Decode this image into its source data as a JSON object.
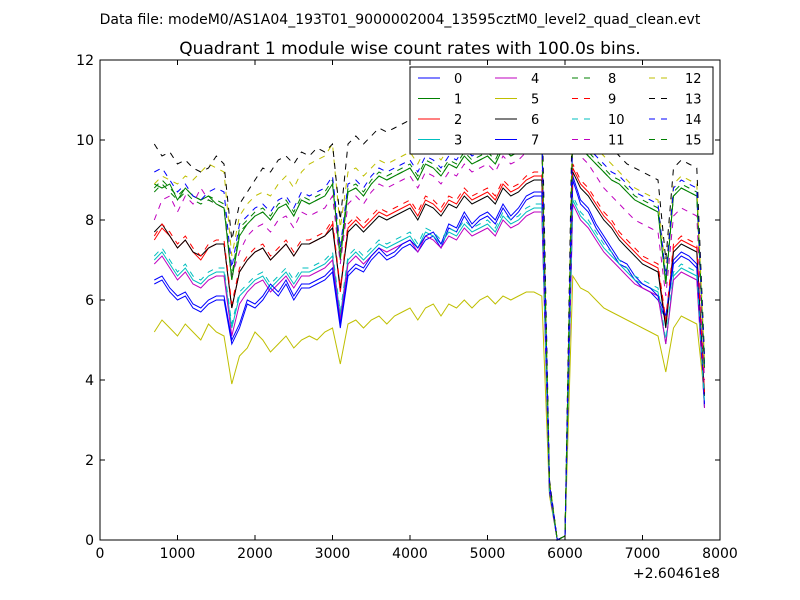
{
  "chart_data": {
    "type": "line",
    "suptitle": "Data file: modeM0/AS1A04_193T01_9000002004_13595cztM0_level2_quad_clean.evt",
    "title": "Quadrant 1 module wise count rates with 100.0s bins.",
    "xlabel": "",
    "ylabel": "",
    "x_offset_label": "+2.60461e8",
    "xlim": [
      0,
      8000
    ],
    "ylim": [
      0,
      12
    ],
    "xticks": [
      0,
      1000,
      2000,
      3000,
      4000,
      5000,
      6000,
      7000,
      8000
    ],
    "yticks": [
      0,
      2,
      4,
      6,
      8,
      10,
      12
    ],
    "grid": false,
    "legend_position": "top-right",
    "legend_columns": 4,
    "series": [
      {
        "name": "0",
        "color": "#0000ff",
        "dash": "solid",
        "values": [
          6.4,
          6.5,
          6.2,
          6.0,
          6.1,
          5.8,
          5.7,
          5.9,
          6.0,
          6.0,
          4.9,
          5.3,
          5.9,
          5.8,
          6.0,
          6.3,
          6.1,
          6.4,
          6.0,
          6.3,
          6.3,
          6.4,
          6.5,
          6.7,
          5.3,
          6.6,
          6.8,
          6.7,
          7.0,
          7.2,
          7.0,
          7.1,
          7.3,
          7.4,
          7.2,
          7.5,
          7.6,
          7.3,
          7.8,
          7.7,
          8.1,
          7.8,
          8.0,
          8.1,
          7.9,
          8.3,
          8.0,
          8.2,
          8.5,
          8.6,
          8.6,
          1.2,
          0.0,
          0.1,
          9.0,
          8.4,
          8.2,
          7.8,
          7.5,
          7.2,
          6.9,
          6.8,
          6.5,
          6.3,
          6.2,
          6.0,
          5.5,
          6.9,
          7.1,
          7.0,
          6.8,
          3.3
        ]
      },
      {
        "name": "1",
        "color": "#008000",
        "dash": "solid",
        "values": [
          8.9,
          8.8,
          8.9,
          8.5,
          8.8,
          8.6,
          8.5,
          8.6,
          8.4,
          8.3,
          6.5,
          7.6,
          7.9,
          8.1,
          8.2,
          8.0,
          8.3,
          8.4,
          8.1,
          8.5,
          8.4,
          8.5,
          8.6,
          8.9,
          7.0,
          8.7,
          8.8,
          8.6,
          8.9,
          9.1,
          9.0,
          9.1,
          9.2,
          9.3,
          9.0,
          9.4,
          9.3,
          9.1,
          9.4,
          9.3,
          9.6,
          9.4,
          9.5,
          9.6,
          9.4,
          9.8,
          9.6,
          9.7,
          9.9,
          10.0,
          10.0,
          1.4,
          0.0,
          0.1,
          10.3,
          9.8,
          9.6,
          9.4,
          9.2,
          9.0,
          8.9,
          8.7,
          8.5,
          8.4,
          8.3,
          8.2,
          6.4,
          8.6,
          8.8,
          8.7,
          8.6,
          4.3
        ]
      },
      {
        "name": "2",
        "color": "#ff0000",
        "dash": "solid",
        "values": [
          7.5,
          7.8,
          7.6,
          7.3,
          7.5,
          7.2,
          7.0,
          7.3,
          7.4,
          7.4,
          5.8,
          6.7,
          7.0,
          7.2,
          7.3,
          7.0,
          7.2,
          7.4,
          7.1,
          7.4,
          7.4,
          7.5,
          7.6,
          7.9,
          6.2,
          7.8,
          8.0,
          7.8,
          8.0,
          8.2,
          8.1,
          8.2,
          8.3,
          8.4,
          8.1,
          8.5,
          8.4,
          8.2,
          8.5,
          8.4,
          8.7,
          8.5,
          8.6,
          8.7,
          8.5,
          8.9,
          8.7,
          8.8,
          9.0,
          9.1,
          9.1,
          1.3,
          0.0,
          0.1,
          9.3,
          8.9,
          8.7,
          8.4,
          8.1,
          7.9,
          7.6,
          7.4,
          7.2,
          7.0,
          6.9,
          6.8,
          5.4,
          7.3,
          7.5,
          7.4,
          7.3,
          3.6
        ]
      },
      {
        "name": "3",
        "color": "#00bfbf",
        "dash": "solid",
        "values": [
          7.0,
          7.2,
          6.9,
          6.6,
          6.8,
          6.5,
          6.4,
          6.6,
          6.7,
          6.7,
          5.3,
          6.1,
          6.3,
          6.5,
          6.6,
          6.3,
          6.5,
          6.7,
          6.4,
          6.7,
          6.7,
          6.8,
          6.9,
          7.1,
          5.6,
          7.0,
          7.2,
          7.0,
          7.2,
          7.4,
          7.3,
          7.4,
          7.5,
          7.6,
          7.3,
          7.7,
          7.6,
          7.4,
          7.7,
          7.6,
          7.9,
          7.7,
          7.8,
          7.9,
          7.7,
          8.1,
          7.9,
          8.0,
          8.2,
          8.3,
          8.3,
          1.2,
          0.0,
          0.1,
          8.5,
          8.1,
          7.9,
          7.6,
          7.3,
          7.1,
          6.9,
          6.7,
          6.5,
          6.4,
          6.3,
          6.2,
          4.9,
          6.6,
          6.8,
          6.7,
          6.6,
          3.3
        ]
      },
      {
        "name": "4",
        "color": "#bf00bf",
        "dash": "solid",
        "values": [
          6.9,
          7.1,
          6.8,
          6.5,
          6.7,
          6.4,
          6.3,
          6.5,
          6.6,
          6.6,
          5.1,
          5.9,
          6.2,
          6.4,
          6.5,
          6.2,
          6.4,
          6.6,
          6.3,
          6.6,
          6.6,
          6.7,
          6.8,
          7.0,
          5.5,
          6.9,
          7.1,
          6.9,
          7.1,
          7.3,
          7.2,
          7.3,
          7.4,
          7.5,
          7.2,
          7.6,
          7.5,
          7.3,
          7.6,
          7.5,
          7.8,
          7.6,
          7.7,
          7.8,
          7.6,
          8.0,
          7.8,
          7.9,
          8.1,
          8.2,
          8.2,
          1.2,
          0.0,
          0.1,
          8.4,
          8.0,
          7.8,
          7.5,
          7.2,
          7.0,
          6.8,
          6.6,
          6.4,
          6.3,
          6.2,
          6.1,
          4.9,
          6.5,
          6.7,
          6.6,
          6.5,
          3.3
        ]
      },
      {
        "name": "5",
        "color": "#bfbf00",
        "dash": "solid",
        "values": [
          5.2,
          5.5,
          5.3,
          5.1,
          5.4,
          5.2,
          5.0,
          5.4,
          5.2,
          5.1,
          3.9,
          4.6,
          4.8,
          5.2,
          5.0,
          4.7,
          4.9,
          5.1,
          4.8,
          5.0,
          5.1,
          5.0,
          5.2,
          5.3,
          4.4,
          5.4,
          5.5,
          5.3,
          5.5,
          5.6,
          5.4,
          5.6,
          5.7,
          5.8,
          5.5,
          5.8,
          5.9,
          5.6,
          5.9,
          5.8,
          6.0,
          5.8,
          6.0,
          6.1,
          5.9,
          6.1,
          6.0,
          6.1,
          6.2,
          6.2,
          6.1,
          1.1,
          0.0,
          0.1,
          6.6,
          6.3,
          6.2,
          6.0,
          5.8,
          5.7,
          5.6,
          5.5,
          5.4,
          5.3,
          5.2,
          5.1,
          4.2,
          5.3,
          5.6,
          5.5,
          5.4,
          3.6
        ]
      },
      {
        "name": "6",
        "color": "#000000",
        "dash": "solid",
        "values": [
          7.7,
          7.9,
          7.6,
          7.3,
          7.5,
          7.2,
          7.1,
          7.3,
          7.4,
          7.4,
          5.8,
          6.7,
          7.0,
          7.2,
          7.3,
          7.0,
          7.2,
          7.4,
          7.1,
          7.4,
          7.4,
          7.5,
          7.6,
          7.8,
          6.3,
          7.7,
          7.9,
          7.7,
          7.9,
          8.1,
          8.0,
          8.1,
          8.2,
          8.3,
          8.0,
          8.4,
          8.3,
          8.1,
          8.4,
          8.3,
          8.6,
          8.4,
          8.5,
          8.6,
          8.4,
          8.8,
          8.6,
          8.7,
          8.9,
          9.0,
          9.0,
          1.3,
          0.0,
          0.1,
          9.2,
          8.8,
          8.6,
          8.3,
          8.0,
          7.8,
          7.5,
          7.3,
          7.1,
          6.9,
          6.8,
          6.7,
          5.3,
          7.2,
          7.4,
          7.3,
          7.2,
          3.6
        ]
      },
      {
        "name": "7",
        "color": "#0000ff",
        "dash": "solid",
        "values": [
          6.5,
          6.6,
          6.3,
          6.1,
          6.2,
          5.9,
          5.8,
          6.0,
          6.1,
          6.1,
          5.0,
          5.4,
          6.0,
          5.9,
          6.1,
          6.4,
          6.2,
          6.5,
          6.1,
          6.4,
          6.4,
          6.5,
          6.6,
          6.8,
          5.4,
          6.7,
          6.9,
          6.8,
          7.1,
          7.3,
          7.1,
          7.2,
          7.4,
          7.5,
          7.3,
          7.6,
          7.7,
          7.4,
          7.9,
          7.8,
          8.2,
          7.9,
          8.1,
          8.2,
          8.0,
          8.4,
          8.1,
          8.3,
          8.6,
          8.7,
          8.7,
          1.2,
          0.0,
          0.1,
          9.1,
          8.5,
          8.3,
          7.9,
          7.6,
          7.3,
          7.0,
          6.9,
          6.6,
          6.4,
          6.3,
          6.1,
          5.6,
          7.0,
          7.2,
          7.1,
          6.9,
          3.4
        ]
      },
      {
        "name": "8",
        "color": "#008000",
        "dash": "dashed",
        "values": [
          8.8,
          9.0,
          8.8,
          8.6,
          8.8,
          8.6,
          8.5,
          8.6,
          8.5,
          8.4,
          6.6,
          7.8,
          8.0,
          8.2,
          8.3,
          8.1,
          8.4,
          8.5,
          8.2,
          8.6,
          8.5,
          8.6,
          8.7,
          9.0,
          7.2,
          8.8,
          8.9,
          8.7,
          9.0,
          9.2,
          9.1,
          9.2,
          9.3,
          9.4,
          9.1,
          9.5,
          9.4,
          9.2,
          9.5,
          9.4,
          9.7,
          9.5,
          9.6,
          9.7,
          9.5,
          9.9,
          9.7,
          9.8,
          10.0,
          10.1,
          10.1,
          1.4,
          0.0,
          0.1,
          10.4,
          9.9,
          9.7,
          9.5,
          9.3,
          9.1,
          9.0,
          8.8,
          8.6,
          8.5,
          8.4,
          8.3,
          6.5,
          8.7,
          8.9,
          8.8,
          8.7,
          4.4
        ]
      },
      {
        "name": "9",
        "color": "#ff0000",
        "dash": "dashed",
        "values": [
          7.6,
          7.9,
          7.7,
          7.4,
          7.6,
          7.3,
          7.1,
          7.4,
          7.5,
          7.5,
          5.9,
          6.8,
          7.1,
          7.3,
          7.4,
          7.1,
          7.3,
          7.5,
          7.2,
          7.5,
          7.5,
          7.6,
          7.7,
          8.0,
          6.3,
          7.9,
          8.1,
          7.9,
          8.1,
          8.3,
          8.2,
          8.3,
          8.4,
          8.5,
          8.2,
          8.6,
          8.5,
          8.3,
          8.6,
          8.5,
          8.8,
          8.6,
          8.7,
          8.8,
          8.6,
          9.0,
          8.8,
          8.9,
          9.1,
          9.2,
          9.2,
          1.3,
          0.0,
          0.1,
          9.4,
          9.0,
          8.8,
          8.5,
          8.2,
          8.0,
          7.7,
          7.5,
          7.3,
          7.1,
          7.0,
          6.9,
          5.5,
          7.4,
          7.6,
          7.5,
          7.4,
          3.7
        ]
      },
      {
        "name": "10",
        "color": "#00bfbf",
        "dash": "dashed",
        "values": [
          7.1,
          7.3,
          7.0,
          6.7,
          6.9,
          6.6,
          6.5,
          6.7,
          6.8,
          6.8,
          5.4,
          6.2,
          6.4,
          6.6,
          6.7,
          6.4,
          6.6,
          6.8,
          6.5,
          6.8,
          6.8,
          6.9,
          7.0,
          7.2,
          5.7,
          7.1,
          7.3,
          7.1,
          7.3,
          7.5,
          7.4,
          7.5,
          7.6,
          7.7,
          7.4,
          7.8,
          7.7,
          7.5,
          7.8,
          7.7,
          8.0,
          7.8,
          7.9,
          8.0,
          7.8,
          8.2,
          8.0,
          8.1,
          8.3,
          8.4,
          8.4,
          1.2,
          0.0,
          0.1,
          8.6,
          8.2,
          8.0,
          7.7,
          7.4,
          7.2,
          7.0,
          6.8,
          6.6,
          6.5,
          6.4,
          6.3,
          5.0,
          6.7,
          6.9,
          6.8,
          6.7,
          3.4
        ]
      },
      {
        "name": "11",
        "color": "#bf00bf",
        "dash": "dashed",
        "values": [
          8.0,
          8.5,
          8.6,
          8.2,
          8.6,
          8.4,
          8.8,
          8.5,
          8.4,
          8.3,
          6.6,
          7.2,
          7.6,
          7.8,
          7.9,
          7.7,
          8.0,
          8.1,
          7.8,
          8.2,
          8.1,
          8.2,
          8.3,
          8.6,
          6.9,
          8.4,
          8.6,
          8.4,
          8.7,
          8.9,
          8.8,
          8.9,
          9.0,
          9.1,
          8.8,
          9.2,
          9.1,
          8.9,
          9.2,
          9.1,
          9.4,
          9.2,
          9.3,
          9.4,
          9.2,
          9.6,
          9.4,
          9.5,
          9.7,
          9.8,
          9.8,
          1.3,
          0.0,
          0.1,
          10.1,
          9.6,
          9.4,
          9.1,
          8.8,
          8.6,
          8.4,
          8.2,
          8.0,
          7.9,
          7.8,
          7.7,
          6.1,
          8.1,
          8.3,
          8.2,
          8.1,
          4.0
        ]
      },
      {
        "name": "12",
        "color": "#bfbf00",
        "dash": "dashed",
        "values": [
          8.9,
          9.1,
          9.0,
          8.9,
          9.1,
          9.0,
          9.2,
          9.4,
          9.3,
          9.2,
          7.1,
          8.1,
          8.4,
          8.6,
          8.7,
          8.6,
          8.9,
          9.1,
          8.8,
          9.2,
          9.4,
          9.5,
          9.6,
          9.9,
          7.8,
          9.2,
          9.3,
          9.1,
          9.3,
          9.5,
          9.4,
          9.5,
          9.6,
          9.7,
          9.4,
          9.8,
          9.7,
          9.5,
          9.8,
          9.7,
          10.0,
          9.8,
          9.9,
          10.0,
          9.8,
          10.2,
          10.0,
          10.1,
          10.3,
          10.4,
          10.4,
          1.5,
          0.0,
          0.1,
          11.0,
          10.2,
          10.0,
          9.8,
          9.6,
          9.4,
          9.2,
          9.0,
          8.8,
          8.7,
          8.6,
          8.5,
          6.7,
          8.9,
          9.1,
          9.0,
          8.9,
          4.5
        ]
      },
      {
        "name": "13",
        "color": "#000000",
        "dash": "dashed",
        "values": [
          9.9,
          9.6,
          9.7,
          9.4,
          9.5,
          9.3,
          9.2,
          9.3,
          9.6,
          9.4,
          7.5,
          8.4,
          8.7,
          9.0,
          9.3,
          9.2,
          9.5,
          9.6,
          9.4,
          9.7,
          9.6,
          9.8,
          9.7,
          9.9,
          8.0,
          9.9,
          10.1,
          9.9,
          10.1,
          10.3,
          10.2,
          10.3,
          10.4,
          10.5,
          10.2,
          10.6,
          10.5,
          10.3,
          10.6,
          10.5,
          10.8,
          10.6,
          10.7,
          10.8,
          10.6,
          11.0,
          10.8,
          10.9,
          11.1,
          11.2,
          11.1,
          1.5,
          0.0,
          0.1,
          11.5,
          10.8,
          10.6,
          10.3,
          10.0,
          9.8,
          9.6,
          9.4,
          9.3,
          9.2,
          9.1,
          9.0,
          7.0,
          9.3,
          9.5,
          9.4,
          9.3,
          4.6
        ]
      },
      {
        "name": "14",
        "color": "#0000ff",
        "dash": "dashed",
        "values": [
          9.2,
          9.3,
          9.0,
          8.7,
          8.9,
          8.6,
          8.5,
          8.7,
          8.8,
          8.7,
          6.8,
          7.9,
          8.1,
          8.3,
          8.4,
          8.2,
          8.5,
          8.6,
          8.3,
          8.7,
          8.6,
          8.7,
          8.8,
          9.1,
          7.3,
          8.9,
          9.0,
          8.8,
          9.1,
          9.3,
          9.2,
          9.3,
          9.4,
          9.5,
          9.2,
          9.6,
          9.5,
          9.3,
          9.6,
          9.5,
          9.8,
          9.6,
          9.7,
          9.8,
          9.6,
          10.0,
          9.8,
          9.9,
          10.1,
          10.2,
          10.2,
          1.4,
          0.0,
          0.1,
          10.5,
          10.0,
          9.8,
          9.6,
          9.4,
          9.2,
          9.1,
          8.9,
          8.7,
          8.6,
          8.5,
          8.4,
          6.6,
          8.8,
          9.0,
          8.9,
          8.8,
          4.4
        ]
      },
      {
        "name": "15",
        "color": "#008000",
        "dash": "dashed",
        "values": [
          8.7,
          8.9,
          8.7,
          8.5,
          8.7,
          8.5,
          8.4,
          8.5,
          8.4,
          8.3,
          6.5,
          7.7,
          7.9,
          8.1,
          8.2,
          8.0,
          8.3,
          8.4,
          8.1,
          8.5,
          8.4,
          8.5,
          8.6,
          8.9,
          7.1,
          8.7,
          8.8,
          8.6,
          8.9,
          9.1,
          9.0,
          9.1,
          9.2,
          9.3,
          9.0,
          9.4,
          9.3,
          9.1,
          9.4,
          9.3,
          9.6,
          9.4,
          9.5,
          9.6,
          9.4,
          9.8,
          9.6,
          9.7,
          9.9,
          10.0,
          10.0,
          1.4,
          0.0,
          0.1,
          10.3,
          9.8,
          9.6,
          9.4,
          9.2,
          9.0,
          8.9,
          8.7,
          8.5,
          8.4,
          8.3,
          8.2,
          6.4,
          8.6,
          8.8,
          8.7,
          8.6,
          4.3
        ]
      }
    ],
    "x_start": 700,
    "x_step": 100
  }
}
